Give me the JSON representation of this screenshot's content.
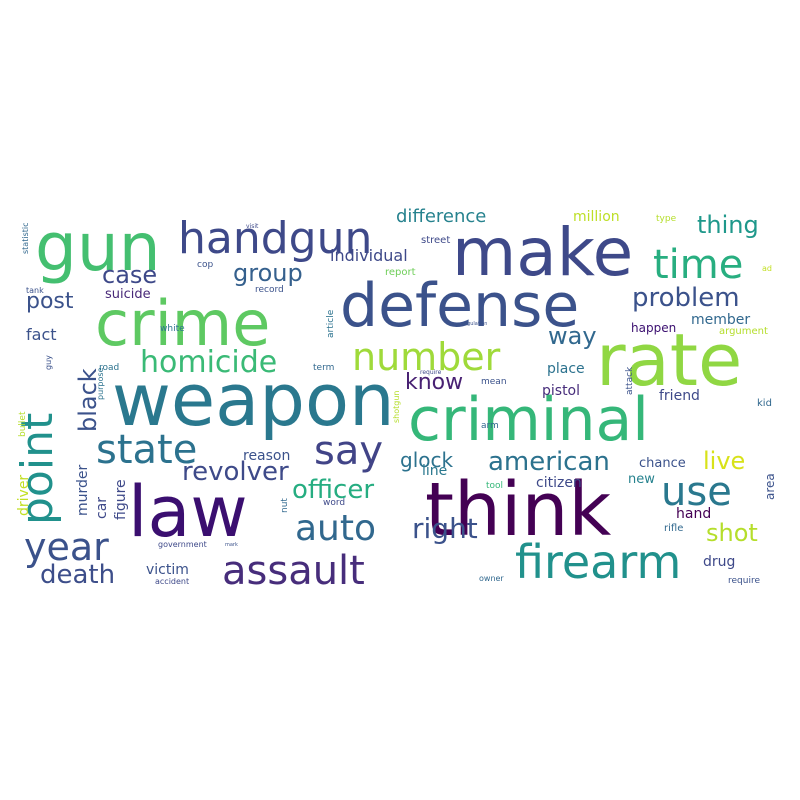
{
  "words": [
    {
      "text": "think",
      "color": "#440154"
    },
    {
      "text": "weapon",
      "color": "#2a788e"
    },
    {
      "text": "law",
      "color": "#3b0f70"
    },
    {
      "text": "make",
      "color": "#3e4989"
    },
    {
      "text": "criminal",
      "color": "#35b779"
    },
    {
      "text": "defense",
      "color": "#3b528b"
    },
    {
      "text": "crime",
      "color": "#5ec962"
    },
    {
      "text": "rate",
      "color": "#90d743"
    },
    {
      "text": "gun",
      "color": "#44bf70"
    },
    {
      "text": "handgun",
      "color": "#3e4989"
    },
    {
      "text": "firearm",
      "color": "#21918c"
    },
    {
      "text": "assault",
      "color": "#472d7b"
    },
    {
      "text": "state",
      "color": "#2c728e"
    },
    {
      "text": "auto",
      "color": "#31688e"
    },
    {
      "text": "say",
      "color": "#414487"
    },
    {
      "text": "number",
      "color": "#9fda3a"
    },
    {
      "text": "homicide",
      "color": "#3aba76"
    },
    {
      "text": "time",
      "color": "#28ae80"
    },
    {
      "text": "year",
      "color": "#3b528b"
    },
    {
      "text": "point",
      "color": "#21918c"
    },
    {
      "text": "use",
      "color": "#2a788e"
    },
    {
      "text": "death",
      "color": "#3d4e8a"
    },
    {
      "text": "revolver",
      "color": "#3e4a89"
    },
    {
      "text": "right",
      "color": "#3b528b"
    },
    {
      "text": "problem",
      "color": "#3b528b"
    },
    {
      "text": "american",
      "color": "#2c728e"
    },
    {
      "text": "officer",
      "color": "#26ad81"
    },
    {
      "text": "group",
      "color": "#35608d"
    },
    {
      "text": "shot",
      "color": "#b5de2b"
    },
    {
      "text": "case",
      "color": "#3e4989"
    },
    {
      "text": "thing",
      "color": "#1f988b"
    },
    {
      "text": "know",
      "color": "#482173"
    },
    {
      "text": "post",
      "color": "#3b528b"
    },
    {
      "text": "black",
      "color": "#3b528b"
    },
    {
      "text": "way",
      "color": "#31688e"
    },
    {
      "text": "live",
      "color": "#d8e219"
    },
    {
      "text": "difference",
      "color": "#26828e"
    },
    {
      "text": "glock",
      "color": "#2c728e"
    },
    {
      "text": "individual",
      "color": "#3e4989"
    },
    {
      "text": "million",
      "color": "#bddf26"
    },
    {
      "text": "fact",
      "color": "#3b528b"
    },
    {
      "text": "suicide",
      "color": "#482878"
    },
    {
      "text": "member",
      "color": "#31688e"
    },
    {
      "text": "place",
      "color": "#2c728e"
    },
    {
      "text": "pistol",
      "color": "#472d7b"
    },
    {
      "text": "friend",
      "color": "#3e4989"
    },
    {
      "text": "happen",
      "color": "#3b0f70"
    },
    {
      "text": "reason",
      "color": "#3b528b"
    },
    {
      "text": "murder",
      "color": "#3b528b"
    },
    {
      "text": "figure",
      "color": "#3e4989"
    },
    {
      "text": "car",
      "color": "#3e4989"
    },
    {
      "text": "driver",
      "color": "#c2df23"
    },
    {
      "text": "victim",
      "color": "#3b528b"
    },
    {
      "text": "citizen",
      "color": "#3e4989"
    },
    {
      "text": "line",
      "color": "#2a788e"
    },
    {
      "text": "chance",
      "color": "#3b528b"
    },
    {
      "text": "new",
      "color": "#26828e"
    },
    {
      "text": "hand",
      "color": "#440154"
    },
    {
      "text": "drug",
      "color": "#3e4989"
    },
    {
      "text": "area",
      "color": "#3b528b"
    },
    {
      "text": "rifle",
      "color": "#31688e"
    },
    {
      "text": "kid",
      "color": "#31688e"
    },
    {
      "text": "argument",
      "color": "#b5de2b"
    },
    {
      "text": "street",
      "color": "#3e4989"
    },
    {
      "text": "report",
      "color": "#6ece58"
    },
    {
      "text": "record",
      "color": "#3b528b"
    },
    {
      "text": "cop",
      "color": "#3b528b"
    },
    {
      "text": "white",
      "color": "#2c728e"
    },
    {
      "text": "road",
      "color": "#2c728e"
    },
    {
      "text": "term",
      "color": "#31688e"
    },
    {
      "text": "article",
      "color": "#2c728e"
    },
    {
      "text": "mean",
      "color": "#3b528b"
    },
    {
      "text": "attack",
      "color": "#3b528b"
    },
    {
      "text": "arm",
      "color": "#31688e"
    },
    {
      "text": "tool",
      "color": "#35b779"
    },
    {
      "text": "word",
      "color": "#3e4989"
    },
    {
      "text": "nut",
      "color": "#31688e"
    },
    {
      "text": "government",
      "color": "#3e4989"
    },
    {
      "text": "accident",
      "color": "#3e4989"
    },
    {
      "text": "owner",
      "color": "#31688e"
    },
    {
      "text": "require",
      "color": "#3b528b"
    },
    {
      "text": "bullet",
      "color": "#b5de2b"
    },
    {
      "text": "purpose",
      "color": "#2c728e"
    },
    {
      "text": "guy",
      "color": "#3b528b"
    },
    {
      "text": "tank",
      "color": "#3b528b"
    },
    {
      "text": "statistic",
      "color": "#31688e"
    },
    {
      "text": "shotgun",
      "color": "#b5de2b"
    },
    {
      "text": "type",
      "color": "#b5de2b"
    },
    {
      "text": "ad",
      "color": "#c2df23"
    },
    {
      "text": "visit",
      "color": "#3e4989"
    },
    {
      "text": "regulation",
      "color": "#3b528b"
    },
    {
      "text": "require",
      "color": "#3e4989"
    },
    {
      "text": "mark",
      "color": "#3b528b"
    }
  ]
}
